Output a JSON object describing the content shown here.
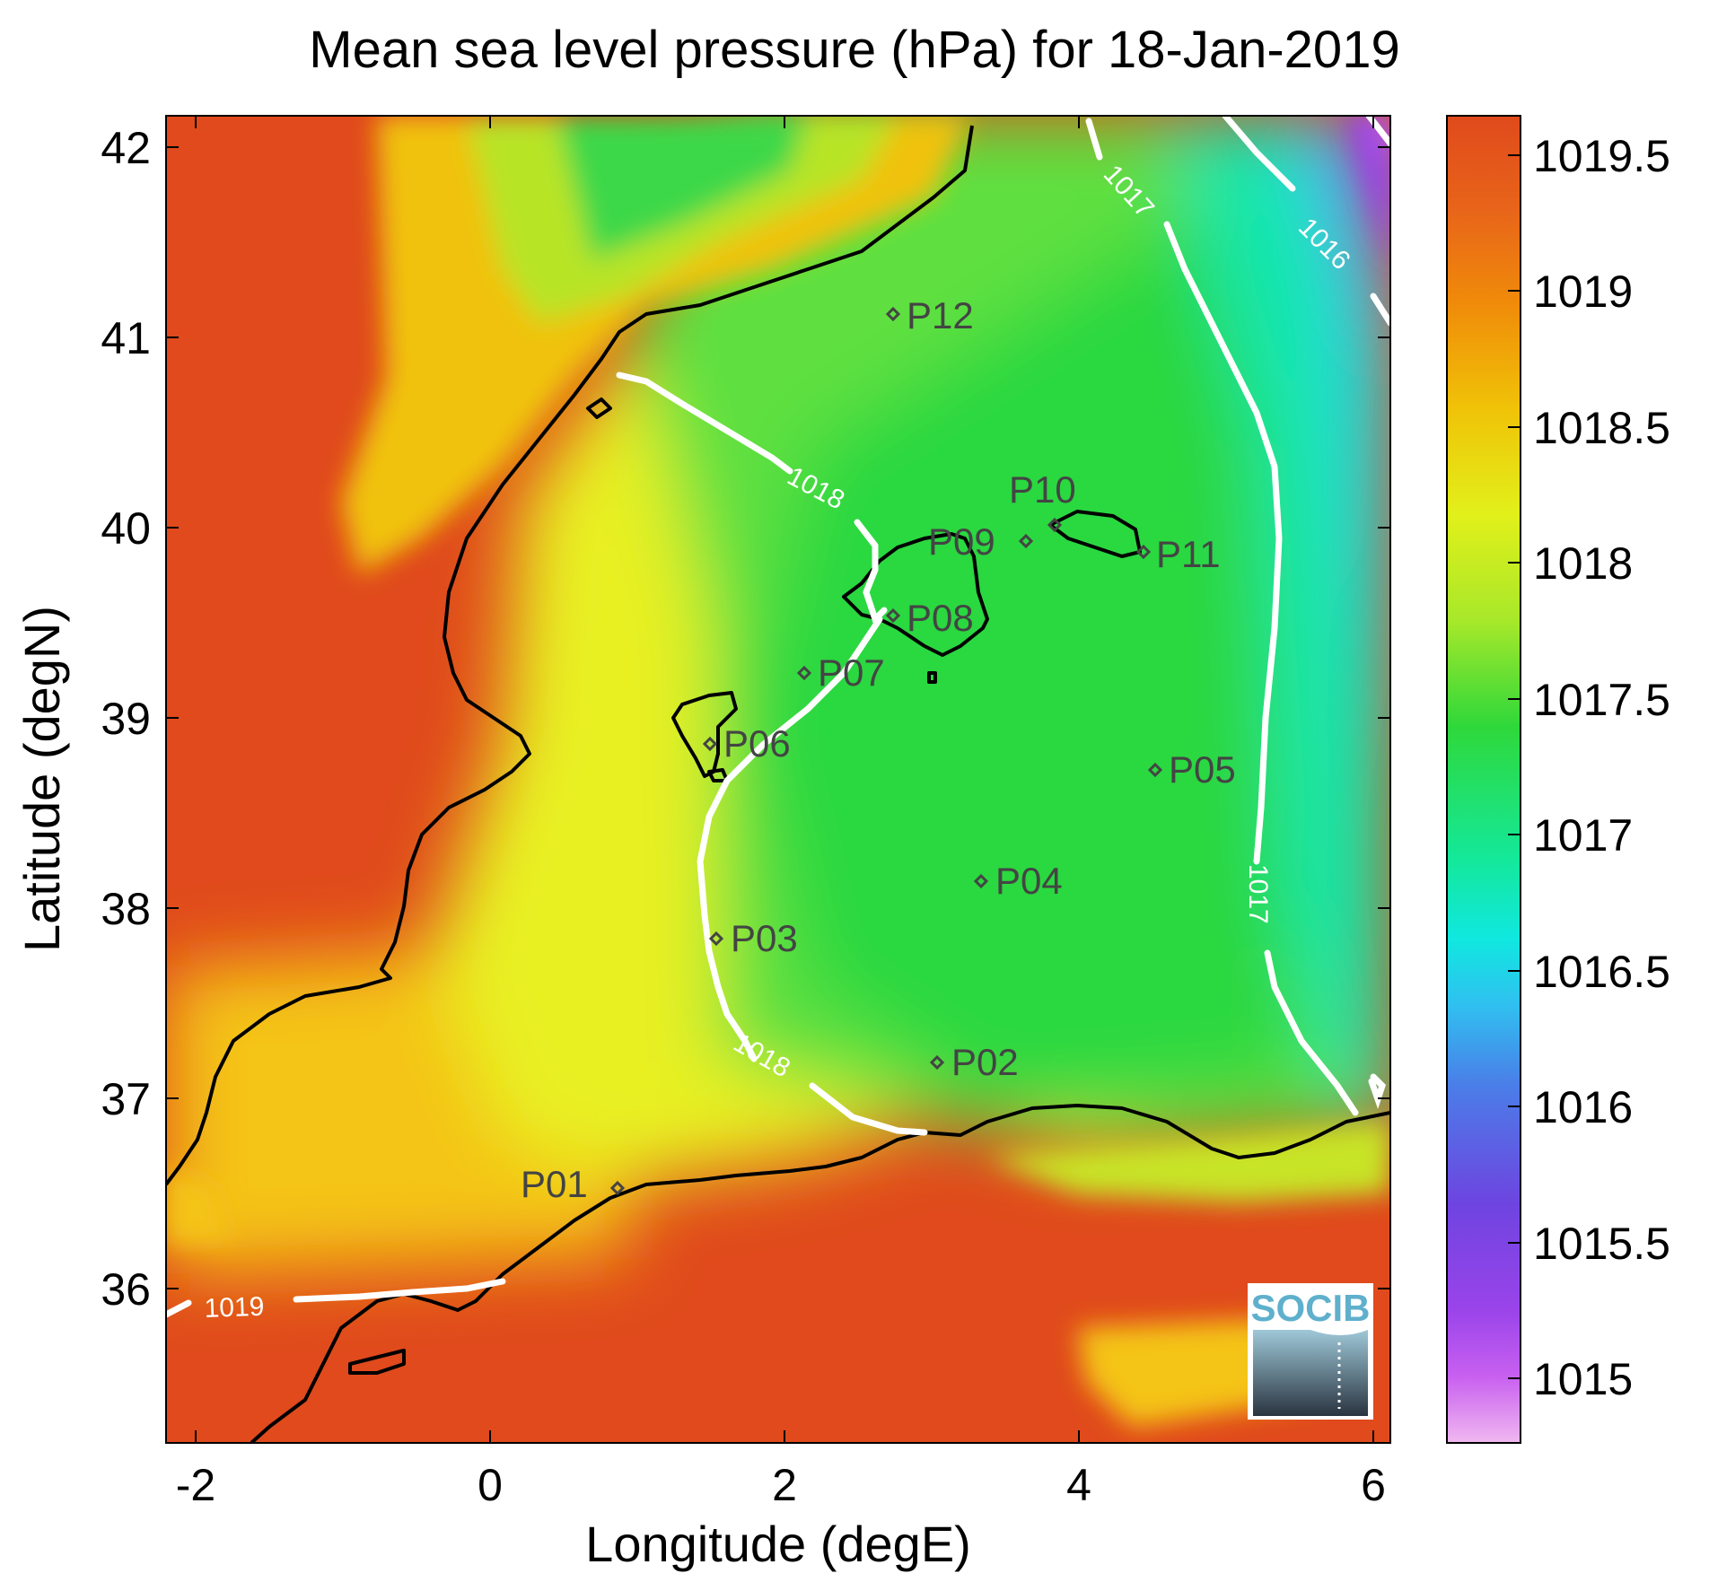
{
  "title": "Mean sea level pressure (hPa) for 18-Jan-2019",
  "xlabel": "Longitude (degE)",
  "ylabel": "Latitude (degN)",
  "x_ticks": [
    "-2",
    "0",
    "2",
    "4",
    "6"
  ],
  "y_ticks": [
    "42",
    "41",
    "40",
    "39",
    "38",
    "37",
    "36"
  ],
  "colorbar": {
    "ticks": [
      "1019.5",
      "1019",
      "1018.5",
      "1018",
      "1017.5",
      "1017",
      "1016.5",
      "1016",
      "1015.5",
      "1015"
    ],
    "colors": [
      "#e04a1c",
      "#f08a0a",
      "#f0c208",
      "#e2f01a",
      "#a8e82a",
      "#2fd83a",
      "#14e89a",
      "#10e8e0",
      "#30c0f0",
      "#4a7ee8",
      "#6e44e0",
      "#9a44ea",
      "#c860f0",
      "#e8a8f0"
    ]
  },
  "contour_labels": [
    "1019",
    "1018",
    "1018",
    "1017",
    "1017",
    "1016"
  ],
  "stations": [
    "P01",
    "P02",
    "P03",
    "P04",
    "P05",
    "P06",
    "P07",
    "P08",
    "P09",
    "P10",
    "P11",
    "P12"
  ],
  "logo_text": "SOCIB",
  "chart_data": {
    "type": "heatmap",
    "title": "Mean sea level pressure (hPa) for 18-Jan-2019",
    "xlabel": "Longitude (degE)",
    "ylabel": "Latitude (degN)",
    "xlim": [
      -2.25,
      6.05
    ],
    "ylim": [
      35.2,
      42.2
    ],
    "colorbar_range": [
      1014.8,
      1019.7
    ],
    "contours": [
      {
        "level": 1016,
        "label": "1016"
      },
      {
        "level": 1017,
        "label": "1017"
      },
      {
        "level": 1018,
        "label": "1018"
      },
      {
        "level": 1019,
        "label": "1019"
      }
    ],
    "stations": [
      {
        "name": "P01",
        "lon": 0.8,
        "lat": 36.5
      },
      {
        "name": "P02",
        "lon": 3.0,
        "lat": 37.15
      },
      {
        "name": "P03",
        "lon": 1.5,
        "lat": 37.8
      },
      {
        "name": "P04",
        "lon": 3.3,
        "lat": 38.1
      },
      {
        "name": "P05",
        "lon": 4.5,
        "lat": 38.7
      },
      {
        "name": "P06",
        "lon": 1.45,
        "lat": 38.85
      },
      {
        "name": "P07",
        "lon": 2.1,
        "lat": 39.2
      },
      {
        "name": "P08",
        "lon": 2.7,
        "lat": 39.5
      },
      {
        "name": "P09",
        "lon": 3.6,
        "lat": 39.9
      },
      {
        "name": "P10",
        "lon": 3.8,
        "lat": 40.0
      },
      {
        "name": "P11",
        "lon": 4.4,
        "lat": 39.85
      },
      {
        "name": "P12",
        "lon": 2.7,
        "lat": 41.1
      }
    ]
  }
}
